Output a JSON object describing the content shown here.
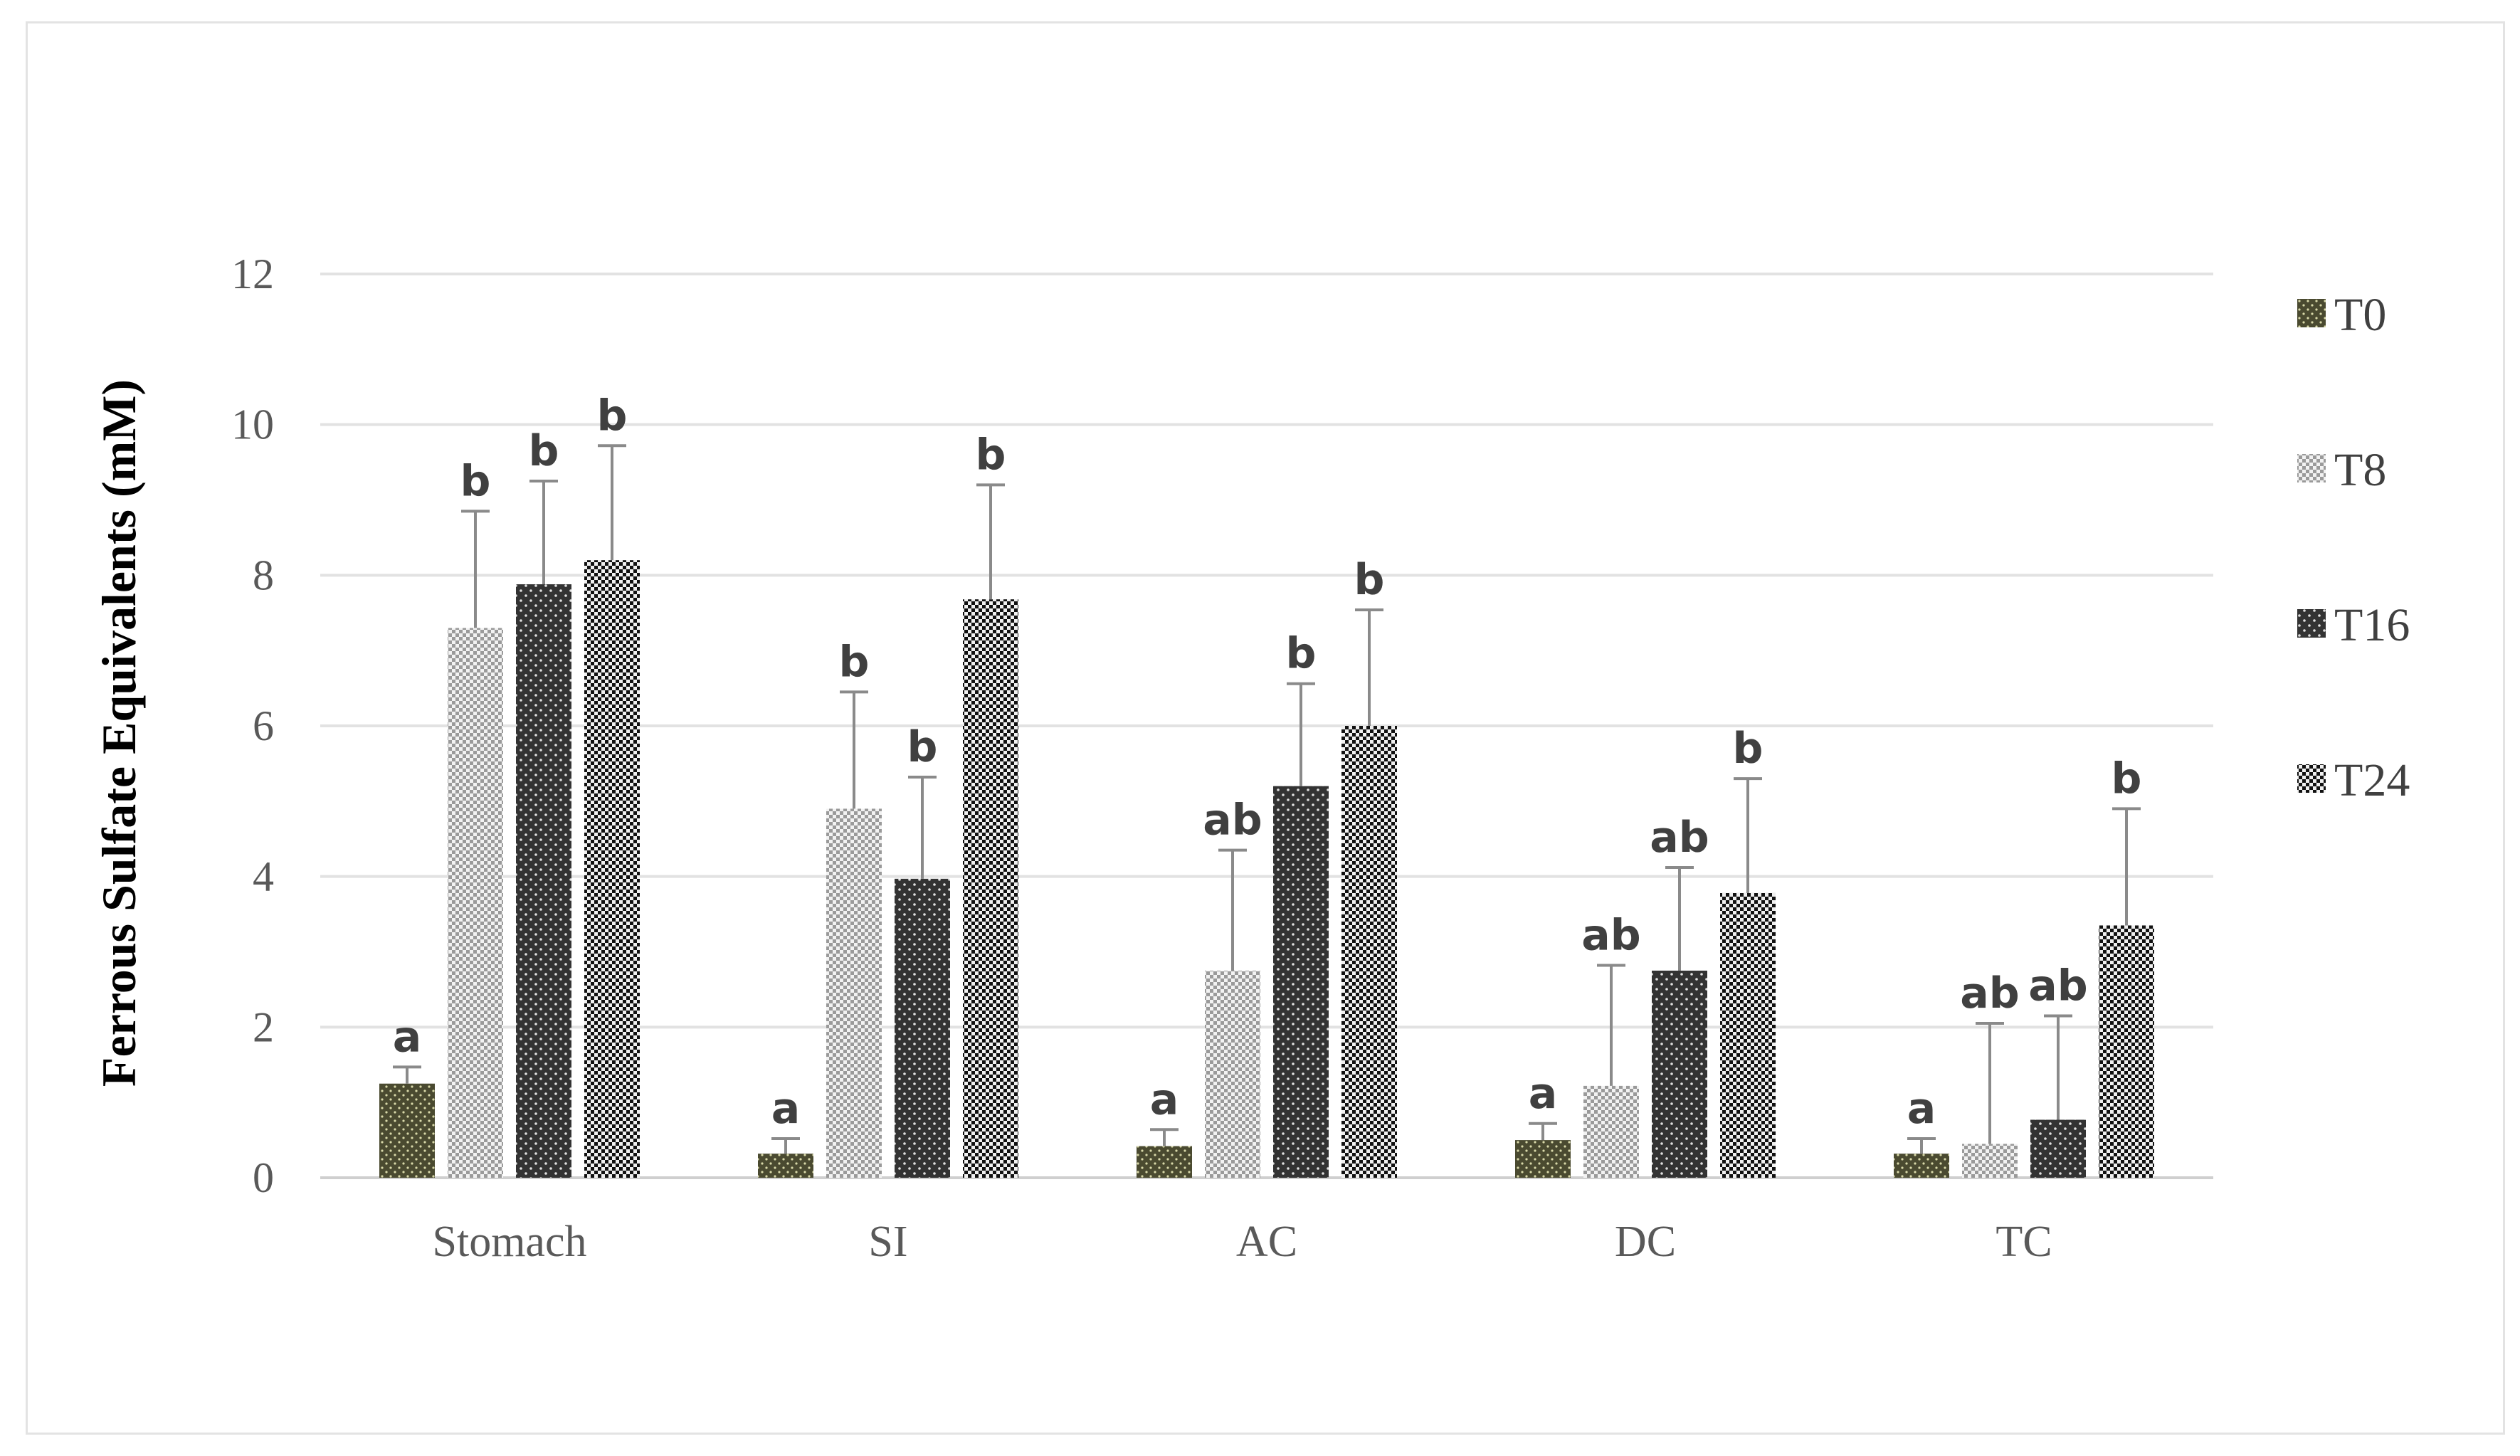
{
  "chart_data": {
    "type": "bar",
    "title": "",
    "xlabel": "",
    "ylabel": "Ferrous Sulfate Equivalents (mM)",
    "ylim": [
      0,
      12
    ],
    "yticks": [
      0,
      2,
      4,
      6,
      8,
      10,
      12
    ],
    "grid": true,
    "legend_position": "right",
    "categories": [
      "Stomach",
      "SI",
      "AC",
      "DC",
      "TC"
    ],
    "series": [
      {
        "name": "T0",
        "pattern": "dark-olive-dots",
        "color": "#4a4a30",
        "values": [
          1.25,
          0.32,
          0.42,
          0.5,
          0.32
        ],
        "errors": [
          0.22,
          0.2,
          0.22,
          0.22,
          0.2
        ],
        "letters": [
          "a",
          "a",
          "a",
          "a",
          "a"
        ]
      },
      {
        "name": "T8",
        "pattern": "light-checker",
        "color": "#c8c8c8",
        "values": [
          7.3,
          4.9,
          2.75,
          1.22,
          0.45
        ],
        "errors": [
          1.55,
          1.55,
          1.6,
          1.6,
          1.6
        ],
        "letters": [
          "b",
          "b",
          "ab",
          "ab",
          "ab"
        ]
      },
      {
        "name": "T16",
        "pattern": "dark-dots",
        "color": "#3a3a3a",
        "values": [
          7.88,
          3.97,
          5.2,
          2.75,
          0.77
        ],
        "errors": [
          1.37,
          1.35,
          1.36,
          1.37,
          1.38
        ],
        "letters": [
          "b",
          "b",
          "b",
          "ab",
          "ab"
        ]
      },
      {
        "name": "T24",
        "pattern": "black-checker",
        "color": "#1a1a1a",
        "values": [
          8.2,
          7.68,
          6.0,
          3.78,
          3.35
        ],
        "errors": [
          1.52,
          1.52,
          1.54,
          1.52,
          1.55
        ],
        "letters": [
          "b",
          "b",
          "b",
          "b",
          "b"
        ]
      }
    ]
  }
}
